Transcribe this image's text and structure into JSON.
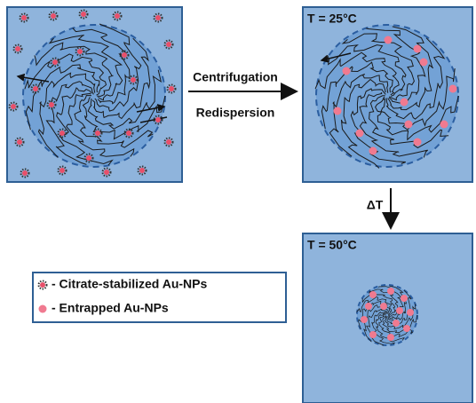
{
  "steps": {
    "arrow_top": "Centrifugation",
    "arrow_bottom": "Redispersion",
    "arrow_down": "ΔT"
  },
  "panels": {
    "panel_25": "T = 25°C",
    "panel_50": "T = 50°C"
  },
  "legend": {
    "citrate": "- Citrate-stabilized Au-NPs",
    "entrapped": "- Entrapped Au-NPs"
  }
}
